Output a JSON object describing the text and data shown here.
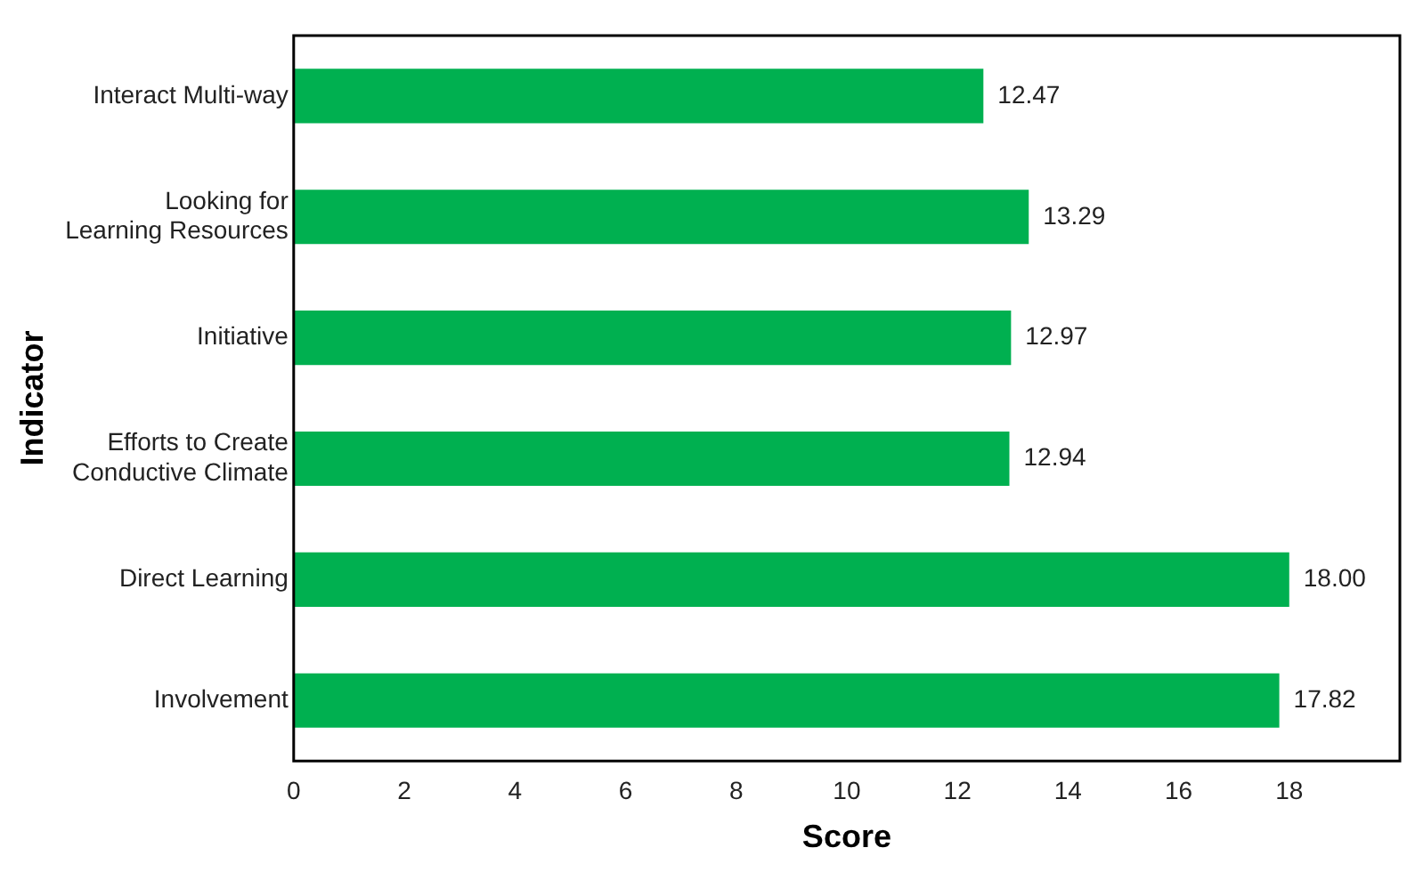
{
  "chart_data": {
    "type": "bar",
    "orientation": "horizontal",
    "xlabel": "Score",
    "ylabel": "Indicator",
    "categories": [
      "Interact Multi-way",
      "Looking for\nLearning Resources",
      "Initiative",
      "Efforts to Create\nConductive Climate",
      "Direct Learning",
      "Involvement"
    ],
    "values": [
      12.47,
      13.29,
      12.97,
      12.94,
      18.0,
      17.82
    ],
    "value_labels": [
      "12.47",
      "13.29",
      "12.97",
      "12.94",
      "18.00",
      "17.82"
    ],
    "color": "#00b050",
    "xlim": [
      0,
      20
    ],
    "xticks": [
      0,
      2,
      4,
      6,
      8,
      10,
      12,
      14,
      16,
      18
    ],
    "grid": false,
    "legend": false
  }
}
